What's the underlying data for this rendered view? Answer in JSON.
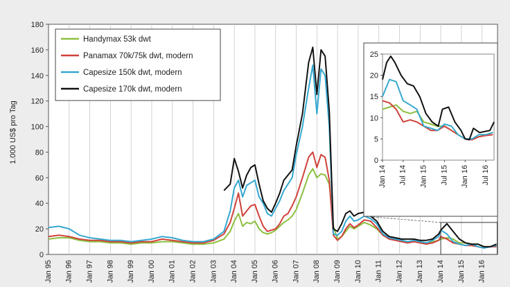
{
  "chart_data": [
    {
      "type": "line",
      "ylabel": "1.000 US$ pro Tag",
      "ylim": [
        0,
        180
      ],
      "yticks": [
        0,
        20,
        40,
        60,
        80,
        100,
        120,
        140,
        160,
        180
      ],
      "xlim": [
        1995.0,
        2016.75
      ],
      "xtick_labels": [
        "Jan 95",
        "Jan 96",
        "Jan 97",
        "Jan 98",
        "Jan 99",
        "Jan 00",
        "Jan 01",
        "Jan 02",
        "Jan 03",
        "Jan 04",
        "Jan 05",
        "Jan 06",
        "Jan 07",
        "Jan 08",
        "Jan 09",
        "Jan 10",
        "Jan 11",
        "Jan 12",
        "Jan 13",
        "Jan 14",
        "Jan 15",
        "Jan 16"
      ],
      "grid": "vertical",
      "legend_position": "top-left",
      "series": [
        {
          "name": "Handymax 53k dwt",
          "color": "#8cbf3f",
          "x": [
            1995.0,
            1995.5,
            1996.0,
            1996.5,
            1997.0,
            1997.5,
            1998.0,
            1998.5,
            1999.0,
            1999.5,
            2000.0,
            2000.5,
            2001.0,
            2001.5,
            2002.0,
            2002.5,
            2003.0,
            2003.5,
            2003.8,
            2004.0,
            2004.2,
            2004.4,
            2004.6,
            2004.8,
            2005.0,
            2005.2,
            2005.4,
            2005.6,
            2005.8,
            2006.0,
            2006.2,
            2006.4,
            2006.6,
            2006.8,
            2007.0,
            2007.3,
            2007.6,
            2007.8,
            2008.0,
            2008.2,
            2008.4,
            2008.6,
            2008.8,
            2009.0,
            2009.2,
            2009.4,
            2009.6,
            2009.8,
            2010.0,
            2010.3,
            2010.6,
            2010.9,
            2011.2,
            2011.5,
            2011.8,
            2012.1,
            2012.4,
            2012.7,
            2013.0,
            2013.3,
            2013.6,
            2013.9,
            2014.0,
            2014.3,
            2014.6,
            2014.9,
            2015.2,
            2015.5,
            2015.8,
            2016.1,
            2016.4,
            2016.7
          ],
          "values": [
            12,
            13,
            13,
            11,
            10,
            10,
            9,
            9,
            8,
            9,
            9,
            10,
            10,
            9,
            8,
            8,
            9,
            12,
            18,
            26,
            32,
            22,
            25,
            24,
            26,
            20,
            17,
            16,
            17,
            19,
            22,
            25,
            27,
            30,
            35,
            48,
            62,
            67,
            60,
            63,
            62,
            55,
            22,
            12,
            14,
            18,
            22,
            20,
            22,
            25,
            23,
            20,
            15,
            13,
            12,
            11,
            10,
            10,
            10,
            9,
            10,
            11,
            12,
            13,
            12,
            9,
            9,
            8,
            8,
            6,
            6,
            7
          ]
        },
        {
          "name": "Panamax 70k/75k dwt, modern",
          "color": "#d0413a",
          "x": [
            1995.0,
            1995.5,
            1996.0,
            1996.5,
            1997.0,
            1997.5,
            1998.0,
            1998.5,
            1999.0,
            1999.5,
            2000.0,
            2000.5,
            2001.0,
            2001.5,
            2002.0,
            2002.5,
            2003.0,
            2003.5,
            2003.8,
            2004.0,
            2004.2,
            2004.4,
            2004.6,
            2004.8,
            2005.0,
            2005.2,
            2005.4,
            2005.6,
            2005.8,
            2006.0,
            2006.2,
            2006.4,
            2006.6,
            2006.8,
            2007.0,
            2007.3,
            2007.6,
            2007.8,
            2008.0,
            2008.2,
            2008.4,
            2008.6,
            2008.8,
            2009.0,
            2009.2,
            2009.4,
            2009.6,
            2009.8,
            2010.0,
            2010.3,
            2010.6,
            2010.9,
            2011.2,
            2011.5,
            2011.8,
            2012.1,
            2012.4,
            2012.7,
            2013.0,
            2013.3,
            2013.6,
            2013.9,
            2014.0,
            2014.3,
            2014.6,
            2014.9,
            2015.2,
            2015.5,
            2015.8,
            2016.1,
            2016.4,
            2016.7
          ],
          "values": [
            14,
            15,
            14,
            12,
            11,
            11,
            10,
            10,
            9,
            10,
            10,
            12,
            11,
            10,
            9,
            9,
            11,
            16,
            25,
            36,
            48,
            30,
            34,
            38,
            39,
            30,
            22,
            18,
            19,
            20,
            24,
            30,
            32,
            38,
            45,
            60,
            76,
            80,
            68,
            78,
            76,
            58,
            15,
            11,
            14,
            20,
            24,
            21,
            23,
            27,
            26,
            21,
            15,
            12,
            11,
            10,
            9,
            10,
            9,
            8,
            9,
            11,
            14,
            12,
            9,
            8,
            7,
            7,
            6,
            5,
            6,
            6
          ]
        },
        {
          "name": "Capesize 150k dwt, modern",
          "color": "#35a8d0",
          "x": [
            1995.0,
            1995.5,
            1996.0,
            1996.5,
            1997.0,
            1997.5,
            1998.0,
            1998.5,
            1999.0,
            1999.5,
            2000.0,
            2000.5,
            2001.0,
            2001.5,
            2002.0,
            2002.5,
            2003.0,
            2003.5,
            2003.8,
            2004.0,
            2004.2,
            2004.4,
            2004.6,
            2004.8,
            2005.0,
            2005.2,
            2005.4,
            2005.6,
            2005.8,
            2006.0,
            2006.2,
            2006.4,
            2006.6,
            2006.8,
            2007.0,
            2007.3,
            2007.6,
            2007.8,
            2008.0,
            2008.2,
            2008.4,
            2008.6,
            2008.8,
            2009.0,
            2009.2,
            2009.4,
            2009.6,
            2009.8,
            2010.0,
            2010.3,
            2010.6,
            2010.9,
            2011.2,
            2011.5,
            2011.8,
            2012.1,
            2012.4,
            2012.7,
            2013.0,
            2013.3,
            2013.6,
            2013.9,
            2014.0,
            2014.3,
            2014.6,
            2014.9,
            2015.2,
            2015.5,
            2015.8,
            2016.1,
            2016.4,
            2016.7
          ],
          "values": [
            21,
            22,
            20,
            15,
            13,
            12,
            11,
            11,
            10,
            11,
            12,
            14,
            13,
            11,
            10,
            10,
            12,
            18,
            34,
            52,
            58,
            45,
            54,
            56,
            58,
            45,
            40,
            32,
            30,
            36,
            42,
            50,
            55,
            60,
            78,
            100,
            130,
            148,
            110,
            145,
            140,
            100,
            16,
            15,
            18,
            26,
            30,
            26,
            27,
            30,
            28,
            24,
            16,
            13,
            12,
            11,
            10,
            11,
            10,
            9,
            11,
            14,
            19,
            16,
            10,
            8,
            7,
            8,
            6,
            5,
            6,
            7
          ]
        },
        {
          "name": "Capesize 170k dwt, modern",
          "color": "#111111",
          "x": [
            2003.5,
            2003.8,
            2004.0,
            2004.2,
            2004.4,
            2004.6,
            2004.8,
            2005.0,
            2005.2,
            2005.4,
            2005.6,
            2005.8,
            2006.0,
            2006.2,
            2006.4,
            2006.6,
            2006.8,
            2007.0,
            2007.3,
            2007.6,
            2007.8,
            2008.0,
            2008.2,
            2008.4,
            2008.6,
            2008.8,
            2009.0,
            2009.2,
            2009.4,
            2009.6,
            2009.8,
            2010.0,
            2010.3,
            2010.6,
            2010.9,
            2011.2,
            2011.5,
            2011.8,
            2012.1,
            2012.4,
            2012.7,
            2013.0,
            2013.3,
            2013.6,
            2013.9,
            2014.0,
            2014.3,
            2014.6,
            2014.9,
            2015.2,
            2015.5,
            2015.8,
            2016.1,
            2016.4,
            2016.7
          ],
          "values": [
            50,
            55,
            75,
            65,
            52,
            62,
            68,
            70,
            55,
            42,
            36,
            33,
            40,
            48,
            58,
            62,
            66,
            85,
            110,
            150,
            162,
            125,
            160,
            155,
            112,
            20,
            18,
            24,
            32,
            34,
            30,
            32,
            33,
            30,
            26,
            18,
            14,
            13,
            12,
            12,
            12,
            11,
            11,
            12,
            16,
            19,
            24,
            18,
            12,
            9,
            8,
            8,
            6,
            6,
            8
          ]
        }
      ]
    },
    {
      "type": "line",
      "ylim": [
        0,
        25
      ],
      "yticks": [
        0,
        5,
        10,
        15,
        20,
        25
      ],
      "xlim": [
        2014.0,
        2016.7
      ],
      "xtick_labels": [
        "Jan 14",
        "Jul 14",
        "Jan 15",
        "Jul 15",
        "Jan 16",
        "Jul 16"
      ],
      "series": [
        {
          "name": "Handymax 53k dwt",
          "color": "#8cbf3f",
          "x": [
            2014.0,
            2014.17,
            2014.33,
            2014.5,
            2014.67,
            2014.83,
            2015.0,
            2015.17,
            2015.33,
            2015.5,
            2015.67,
            2015.83,
            2016.0,
            2016.17,
            2016.33,
            2016.5,
            2016.67
          ],
          "values": [
            12,
            12.5,
            13,
            11.5,
            11,
            11.5,
            9,
            8.5,
            8,
            8,
            7,
            6,
            5,
            5,
            5.5,
            6,
            6.5
          ]
        },
        {
          "name": "Panamax 70k/75k dwt, modern",
          "color": "#d0413a",
          "x": [
            2014.0,
            2014.17,
            2014.33,
            2014.5,
            2014.67,
            2014.83,
            2015.0,
            2015.17,
            2015.33,
            2015.5,
            2015.67,
            2015.83,
            2016.0,
            2016.17,
            2016.33,
            2016.5,
            2016.67
          ],
          "values": [
            14,
            13.5,
            12,
            9,
            9.5,
            9,
            8,
            7,
            7,
            8,
            7,
            6,
            5,
            4.8,
            5.5,
            5.8,
            6
          ]
        },
        {
          "name": "Capesize 150k dwt, modern",
          "color": "#35a8d0",
          "x": [
            2014.0,
            2014.17,
            2014.33,
            2014.5,
            2014.67,
            2014.83,
            2015.0,
            2015.17,
            2015.33,
            2015.5,
            2015.67,
            2015.83,
            2016.0,
            2016.17,
            2016.33,
            2016.5,
            2016.67
          ],
          "values": [
            15,
            19,
            18.5,
            14,
            13,
            12,
            8,
            7.5,
            7,
            8.5,
            8,
            6,
            5,
            5,
            6,
            6,
            6.5
          ]
        },
        {
          "name": "Capesize 170k dwt, modern",
          "color": "#111111",
          "x": [
            2014.0,
            2014.1,
            2014.2,
            2014.3,
            2014.45,
            2014.6,
            2014.75,
            2014.9,
            2015.05,
            2015.2,
            2015.35,
            2015.45,
            2015.6,
            2015.75,
            2015.9,
            2016.0,
            2016.1,
            2016.2,
            2016.35,
            2016.5,
            2016.6,
            2016.7
          ],
          "values": [
            19,
            23,
            24.5,
            23,
            20,
            18,
            17.5,
            15,
            11,
            9,
            8,
            12,
            12.5,
            9,
            7,
            5,
            4.8,
            7.5,
            6.5,
            6.8,
            7,
            9
          ]
        }
      ]
    }
  ]
}
